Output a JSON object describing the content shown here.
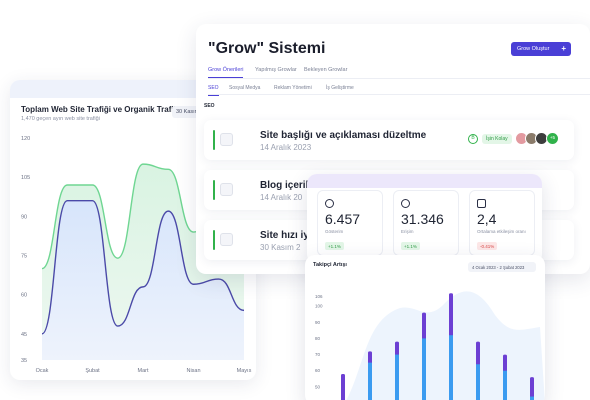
{
  "traffic": {
    "title": "Toplam Web Site Trafiği ve Organik Trafik",
    "subtitle": "1,470 geçen ayın web site trafiği",
    "range": "30 Kasım 2023"
  },
  "grow": {
    "title": "\"Grow\" Sistemi",
    "create_button": "Grow Oluştur",
    "create_button_icon": "plus-icon",
    "tabs": [
      "Grow Önerileri",
      "Yapılmış Growlar",
      "Bekleyen Growlar"
    ],
    "subtabs": [
      "SEO",
      "Sosyal Medya",
      "Reklam Yönetimi",
      "İş Geliştirme"
    ],
    "section_label": "SEO",
    "tasks": [
      {
        "title": "Site başlığı ve açıklaması düzeltme",
        "date": "14 Aralık 2023",
        "difficulty": "İşin Kolay",
        "avatar_more": "+5"
      },
      {
        "title": "Blog içerik",
        "date": "14 Aralık 20"
      },
      {
        "title": "Site hızı iy",
        "date": "30 Kasım 2"
      }
    ]
  },
  "stats": [
    {
      "icon": "eye-icon",
      "value": "6.457",
      "label": "Gösterim",
      "change": "+1.1%",
      "trend": "up"
    },
    {
      "icon": "eye-icon",
      "value": "31.346",
      "label": "Erişim",
      "change": "+1.1%",
      "trend": "up"
    },
    {
      "icon": "square-icon",
      "value": "2,4",
      "label": "Ortalama etkileşim oranı",
      "change": "-0.41%",
      "trend": "down"
    }
  ],
  "followers": {
    "title": "Takipçi Artışı",
    "range": "4 Ocak 2023 - 2 Şubat 2023"
  },
  "colors": {
    "accent": "#4a3fd6",
    "green": "#31b24b",
    "organic_line": "#4b4aa8",
    "total_line": "#6fd692",
    "bar_blue": "#3b9bf0",
    "bar_purple": "#6c3fd3"
  },
  "chart_data": [
    {
      "type": "area",
      "title": "Toplam Web Site Trafiği ve Organik Trafik",
      "categories": [
        "Ocak",
        "Şubat",
        "Mart",
        "Nisan",
        "Mayıs"
      ],
      "yticks": [
        "35",
        "45",
        "60",
        "75",
        "90",
        "105",
        "120"
      ],
      "series": [
        {
          "x": [
            0,
            0.5,
            1,
            1.5,
            2,
            2.5,
            3,
            3.5,
            4
          ],
          "values": [
            70,
            102,
            102,
            74,
            110,
            108,
            84,
            92,
            88
          ]
        },
        {
          "x": [
            0,
            0.5,
            1,
            1.5,
            2,
            2.5,
            3,
            3.5,
            4
          ],
          "values": [
            45,
            96,
            96,
            48,
            63,
            92,
            64,
            66,
            54
          ]
        }
      ],
      "ylim": [
        35,
        120
      ]
    },
    {
      "type": "bar",
      "title": "Takipçi Artışı",
      "yticks": [
        "40",
        "50",
        "60",
        "70",
        "80",
        "90",
        "100",
        "106"
      ],
      "series": [
        {
          "values": [
            58,
            72,
            78,
            96,
            108,
            78,
            70,
            56
          ]
        },
        {
          "values": [
            40,
            65,
            70,
            80,
            82,
            64,
            60,
            44
          ]
        }
      ],
      "ylim": [
        40,
        110
      ]
    }
  ]
}
